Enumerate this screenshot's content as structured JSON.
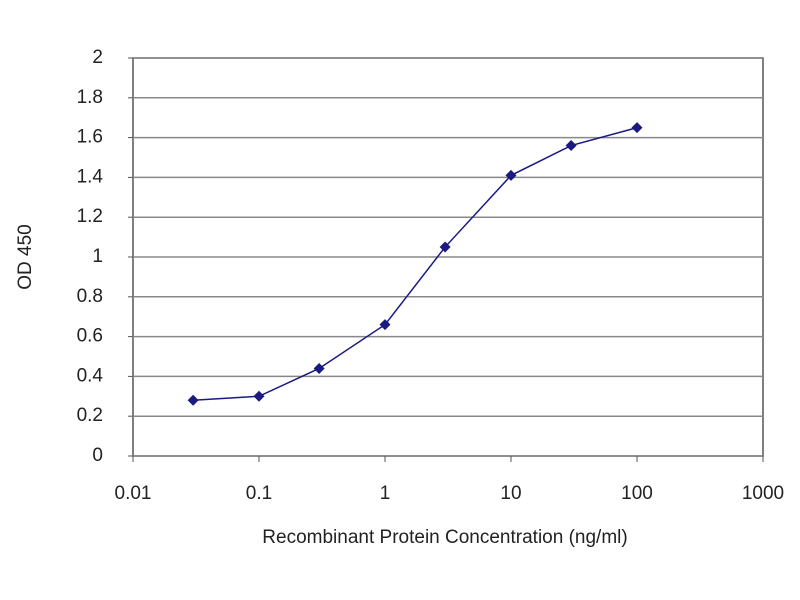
{
  "chart_data": {
    "type": "line",
    "xlabel": "Recombinant Protein Concentration (ng/ml)",
    "ylabel": "OD 450",
    "x": [
      0.03,
      0.1,
      0.3,
      1,
      3,
      10,
      30,
      100
    ],
    "values": [
      0.28,
      0.3,
      0.44,
      0.66,
      1.05,
      1.41,
      1.56,
      1.65
    ],
    "color": "#1a1a80",
    "xscale": "log",
    "xlim": [
      0.01,
      1000
    ],
    "xticks": [
      0.01,
      0.1,
      1,
      10,
      100,
      1000
    ],
    "ylim": [
      0,
      2
    ],
    "yticks": [
      0,
      0.2,
      0.4,
      0.6,
      0.8,
      1,
      1.2,
      1.4,
      1.6,
      1.8,
      2
    ],
    "grid": true
  }
}
